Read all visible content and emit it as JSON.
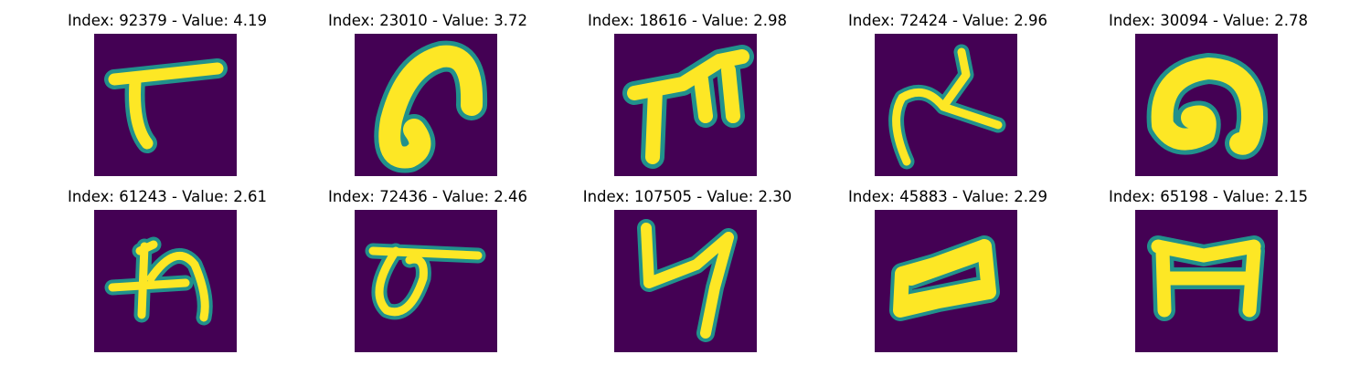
{
  "colors": {
    "background": "#440154",
    "mid": "#21918c",
    "edge": "#5ec962",
    "stroke": "#fde725"
  },
  "panels": [
    {
      "title": "Index: 92379 - Value: 4.19",
      "glyph": "digit-like-7-stroke-icon"
    },
    {
      "title": "Index: 23010 - Value: 3.72",
      "glyph": "curved-hook-stroke-icon"
    },
    {
      "title": "Index: 18616 - Value: 2.98",
      "glyph": "double-arch-stroke-icon"
    },
    {
      "title": "Index: 72424 - Value: 2.96",
      "glyph": "loop-cross-stroke-icon"
    },
    {
      "title": "Index: 30094 - Value: 2.78",
      "glyph": "rounded-hook-stroke-icon"
    },
    {
      "title": "Index: 61243 - Value: 2.61",
      "glyph": "cross-n-stroke-icon"
    },
    {
      "title": "Index: 72436 - Value: 2.46",
      "glyph": "oval-bar-stroke-icon"
    },
    {
      "title": "Index: 107505 - Value: 2.30",
      "glyph": "zigzag-stroke-icon"
    },
    {
      "title": "Index: 45883 - Value: 2.29",
      "glyph": "i-beam-stroke-icon"
    },
    {
      "title": "Index: 65198 - Value: 2.15",
      "glyph": "arch-bridge-stroke-icon"
    }
  ]
}
